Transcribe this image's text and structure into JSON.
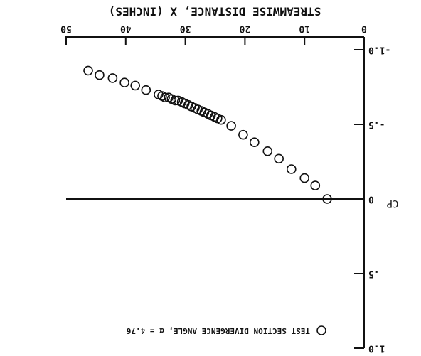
{
  "chart_data": {
    "type": "scatter",
    "title": "STREAMWISE DISTANCE, X (INCHES)",
    "y_label": "CP",
    "series": [
      {
        "name": "TEST SECTION DIVERGENCE ANGLE, α = 4.76",
        "color": "#111111",
        "x": [
          6.2,
          8.2,
          10.0,
          12.2,
          14.3,
          16.2,
          18.4,
          20.3,
          22.3,
          24.0,
          24.6,
          25.1,
          25.7,
          26.2,
          26.8,
          27.3,
          27.9,
          28.4,
          29.0,
          29.5,
          30.1,
          30.6,
          31.2,
          31.7,
          32.3,
          32.8,
          33.4,
          33.9,
          34.5,
          36.6,
          38.4,
          40.2,
          42.2,
          44.4,
          46.3
        ],
        "values": [
          0,
          -0.09,
          -0.14,
          -0.2,
          -0.27,
          -0.32,
          -0.38,
          -0.43,
          -0.49,
          -0.53,
          -0.54,
          -0.55,
          -0.56,
          -0.57,
          -0.58,
          -0.59,
          -0.6,
          -0.61,
          -0.62,
          -0.63,
          -0.64,
          -0.65,
          -0.66,
          -0.66,
          -0.67,
          -0.68,
          -0.68,
          -0.69,
          -0.7,
          -0.73,
          -0.76,
          -0.78,
          -0.81,
          -0.83,
          -0.86
        ]
      }
    ],
    "xlim": [
      0,
      50
    ],
    "xticks": [
      0,
      10,
      20,
      30,
      40,
      50
    ],
    "ylim": [
      -1.0,
      1.0
    ],
    "yticks": [
      {
        "value": -1.0,
        "label": "-1.0"
      },
      {
        "value": -0.5,
        "label": "-.5"
      },
      0,
      {
        "value": 0.5,
        "label": ".5"
      },
      {
        "value": 1.0,
        "label": "1.0"
      }
    ],
    "zero_line": true
  }
}
